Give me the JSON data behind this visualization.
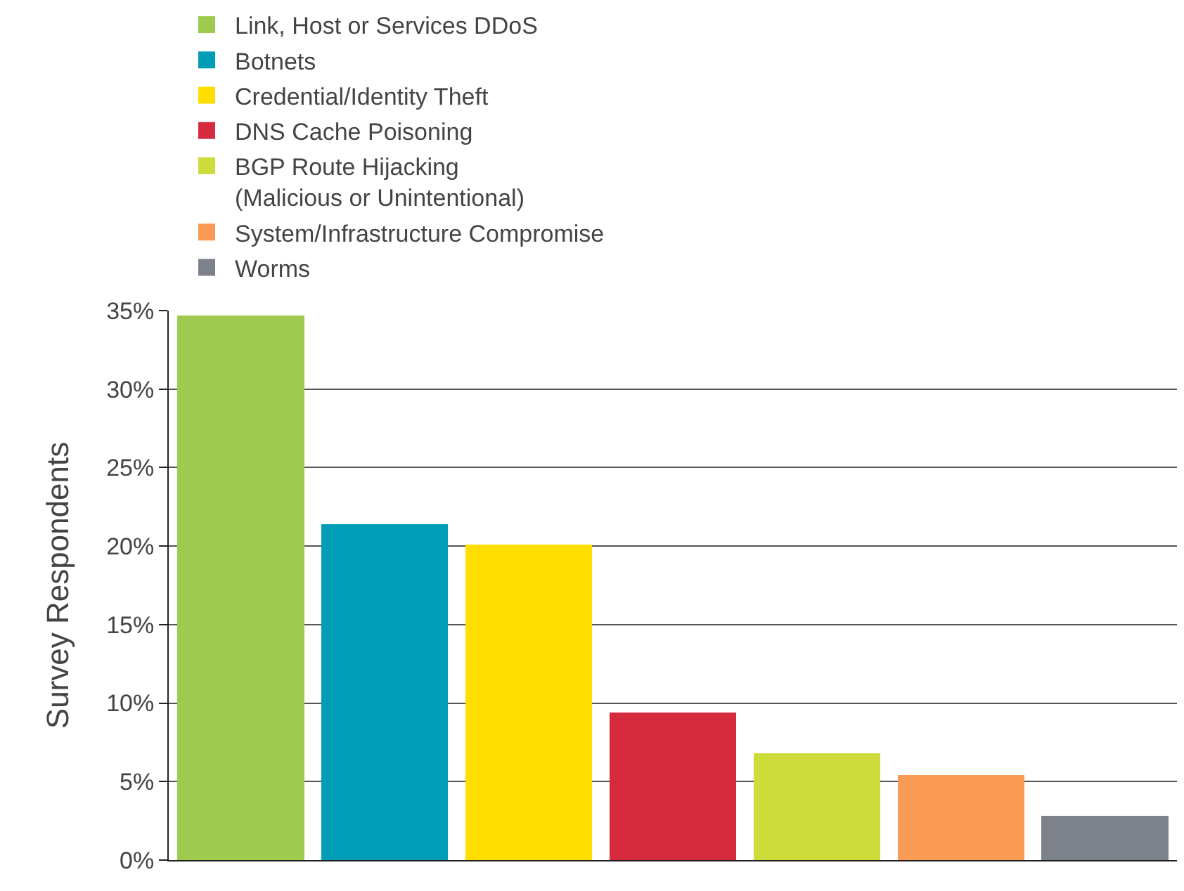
{
  "chart_data": {
    "type": "bar",
    "ylabel": "Survey Respondents",
    "categories": [
      null,
      null,
      null,
      null,
      null,
      null,
      null
    ],
    "series": [
      {
        "name": "Link, Host or Services DDoS",
        "color": "#9ecb4f",
        "values": [
          34.7,
          null,
          null,
          null,
          null,
          null,
          null
        ]
      },
      {
        "name": "Botnets",
        "color": "#009db7",
        "values": [
          null,
          21.4,
          null,
          null,
          null,
          null,
          null
        ]
      },
      {
        "name": "Credential/Identity Theft",
        "color": "#ffde00",
        "values": [
          null,
          null,
          20.1,
          null,
          null,
          null,
          null
        ]
      },
      {
        "name": "DNS Cache Poisoning",
        "color": "#d62b3f",
        "values": [
          null,
          null,
          null,
          9.4,
          null,
          null,
          null
        ]
      },
      {
        "name": "BGP Route Hijacking (Malicious or Unintentional)",
        "color": "#cddc3a",
        "values": [
          null,
          null,
          null,
          null,
          6.8,
          null,
          null
        ]
      },
      {
        "name": "System/Infrastructure Compromise",
        "color": "#f99b54",
        "values": [
          null,
          null,
          null,
          null,
          null,
          5.4,
          null
        ]
      },
      {
        "name": "Worms",
        "color": "#7d8189",
        "values": [
          null,
          null,
          null,
          null,
          null,
          null,
          2.8
        ]
      }
    ],
    "stacked": true,
    "ylim": [
      0,
      35
    ],
    "yticks": [
      {
        "value": 0,
        "label": "0%"
      },
      {
        "value": 5,
        "label": "5%"
      },
      {
        "value": 10,
        "label": "10%"
      },
      {
        "value": 15,
        "label": "15%"
      },
      {
        "value": 20,
        "label": "20%"
      },
      {
        "value": 25,
        "label": "25%"
      },
      {
        "value": 30,
        "label": "30%"
      },
      {
        "value": 35,
        "label": "35%"
      }
    ],
    "grid": "y",
    "legend": "top",
    "tick_labels": "y"
  }
}
